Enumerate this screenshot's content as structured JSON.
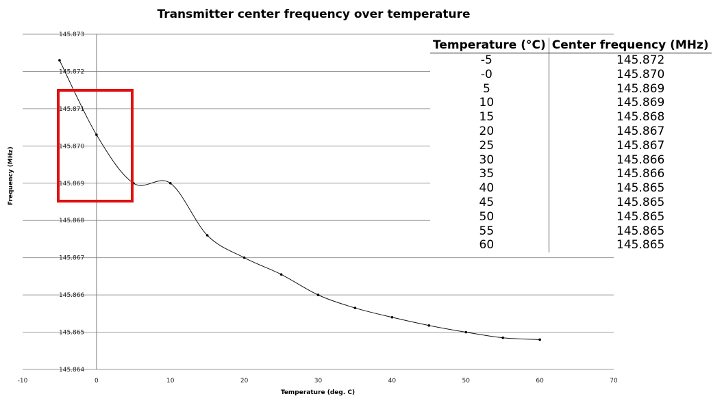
{
  "chart_data": {
    "type": "line",
    "title": "Transmitter center frequency over temperature",
    "xlabel": "Temperature (deg. C)",
    "ylabel": "Frequency (MHz)",
    "xlim": [
      -10,
      70
    ],
    "ylim": [
      145.864,
      145.873
    ],
    "x_ticks": [
      "-10",
      "0",
      "10",
      "20",
      "30",
      "40",
      "50",
      "60",
      "70"
    ],
    "y_ticks": [
      "145.873",
      "145.872",
      "145.871",
      "145.870",
      "145.869",
      "145.868",
      "145.867",
      "145.866",
      "145.865",
      "145.864"
    ],
    "grid": "horizontal",
    "series": [
      {
        "x": [
          -5,
          0,
          5,
          10,
          15,
          20,
          25,
          30,
          35,
          40,
          45,
          50,
          55,
          60
        ],
        "y": [
          145.8723,
          145.8703,
          145.869,
          145.869,
          145.8676,
          145.867,
          145.86655,
          145.866,
          145.86565,
          145.8654,
          145.86518,
          145.865,
          145.86485,
          145.8648
        ]
      }
    ]
  },
  "table": {
    "headers": [
      "Temperature (°C)",
      "Center frequency (MHz)"
    ],
    "rows": [
      [
        "-5",
        "145.872"
      ],
      [
        "-0",
        "145.870"
      ],
      [
        "5",
        "145.869"
      ],
      [
        "10",
        "145.869"
      ],
      [
        "15",
        "145.868"
      ],
      [
        "20",
        "145.867"
      ],
      [
        "25",
        "145.867"
      ],
      [
        "30",
        "145.866"
      ],
      [
        "35",
        "145.866"
      ],
      [
        "40",
        "145.865"
      ],
      [
        "45",
        "145.865"
      ],
      [
        "50",
        "145.865"
      ],
      [
        "55",
        "145.865"
      ],
      [
        "60",
        "145.865"
      ]
    ]
  },
  "annotation": {
    "color": "#e01010"
  }
}
